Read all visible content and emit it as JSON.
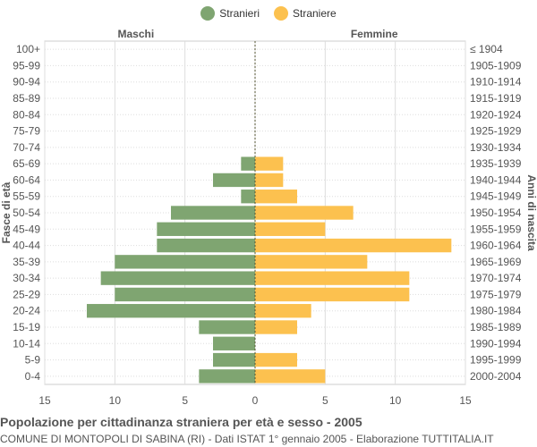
{
  "legend": {
    "stranieri_label": "Stranieri",
    "straniere_label": "Straniere"
  },
  "colors": {
    "male": "#7fa571",
    "female": "#fcc14f",
    "grid": "#dddddd",
    "axis_text": "#555555",
    "center_line": "#555533"
  },
  "caption": {
    "title": "Popolazione per cittadinanza straniera per età e sesso - 2005",
    "subtitle": "COMUNE DI MONTOPOLI DI SABINA (RI) - Dati ISTAT 1° gennaio 2005 - Elaborazione TUTTITALIA.IT"
  },
  "chart_data": {
    "type": "bar",
    "orientation": "horizontal-population-pyramid",
    "left_header": "Maschi",
    "right_header": "Femmine",
    "ylabel_left": "Fasce di età",
    "ylabel_right": "Anni di nascita",
    "categories": [
      "100+",
      "95-99",
      "90-94",
      "85-89",
      "80-84",
      "75-79",
      "70-74",
      "65-69",
      "60-64",
      "55-59",
      "50-54",
      "45-49",
      "40-44",
      "35-39",
      "30-34",
      "25-29",
      "20-24",
      "15-19",
      "10-14",
      "5-9",
      "0-4"
    ],
    "birth_years": [
      "≤ 1904",
      "1905-1909",
      "1910-1914",
      "1915-1919",
      "1920-1924",
      "1925-1929",
      "1930-1934",
      "1935-1939",
      "1940-1944",
      "1945-1949",
      "1950-1954",
      "1955-1959",
      "1960-1964",
      "1965-1969",
      "1970-1974",
      "1975-1979",
      "1980-1984",
      "1985-1989",
      "1990-1994",
      "1995-1999",
      "2000-2004"
    ],
    "series": [
      {
        "name": "Stranieri",
        "side": "left",
        "values": [
          0,
          0,
          0,
          0,
          0,
          0,
          0,
          1,
          3,
          1,
          6,
          7,
          7,
          10,
          11,
          10,
          12,
          4,
          3,
          3,
          4
        ]
      },
      {
        "name": "Straniere",
        "side": "right",
        "values": [
          0,
          0,
          0,
          0,
          0,
          0,
          0,
          2,
          2,
          3,
          7,
          5,
          14,
          8,
          11,
          11,
          4,
          3,
          0,
          3,
          5
        ]
      }
    ],
    "xlim": [
      -15,
      15
    ],
    "xticks": [
      -15,
      -10,
      -5,
      0,
      5,
      10,
      15
    ],
    "xtick_labels": [
      "15",
      "10",
      "5",
      "0",
      "5",
      "10",
      "15"
    ],
    "grid": true,
    "legend_position": "top-center"
  }
}
